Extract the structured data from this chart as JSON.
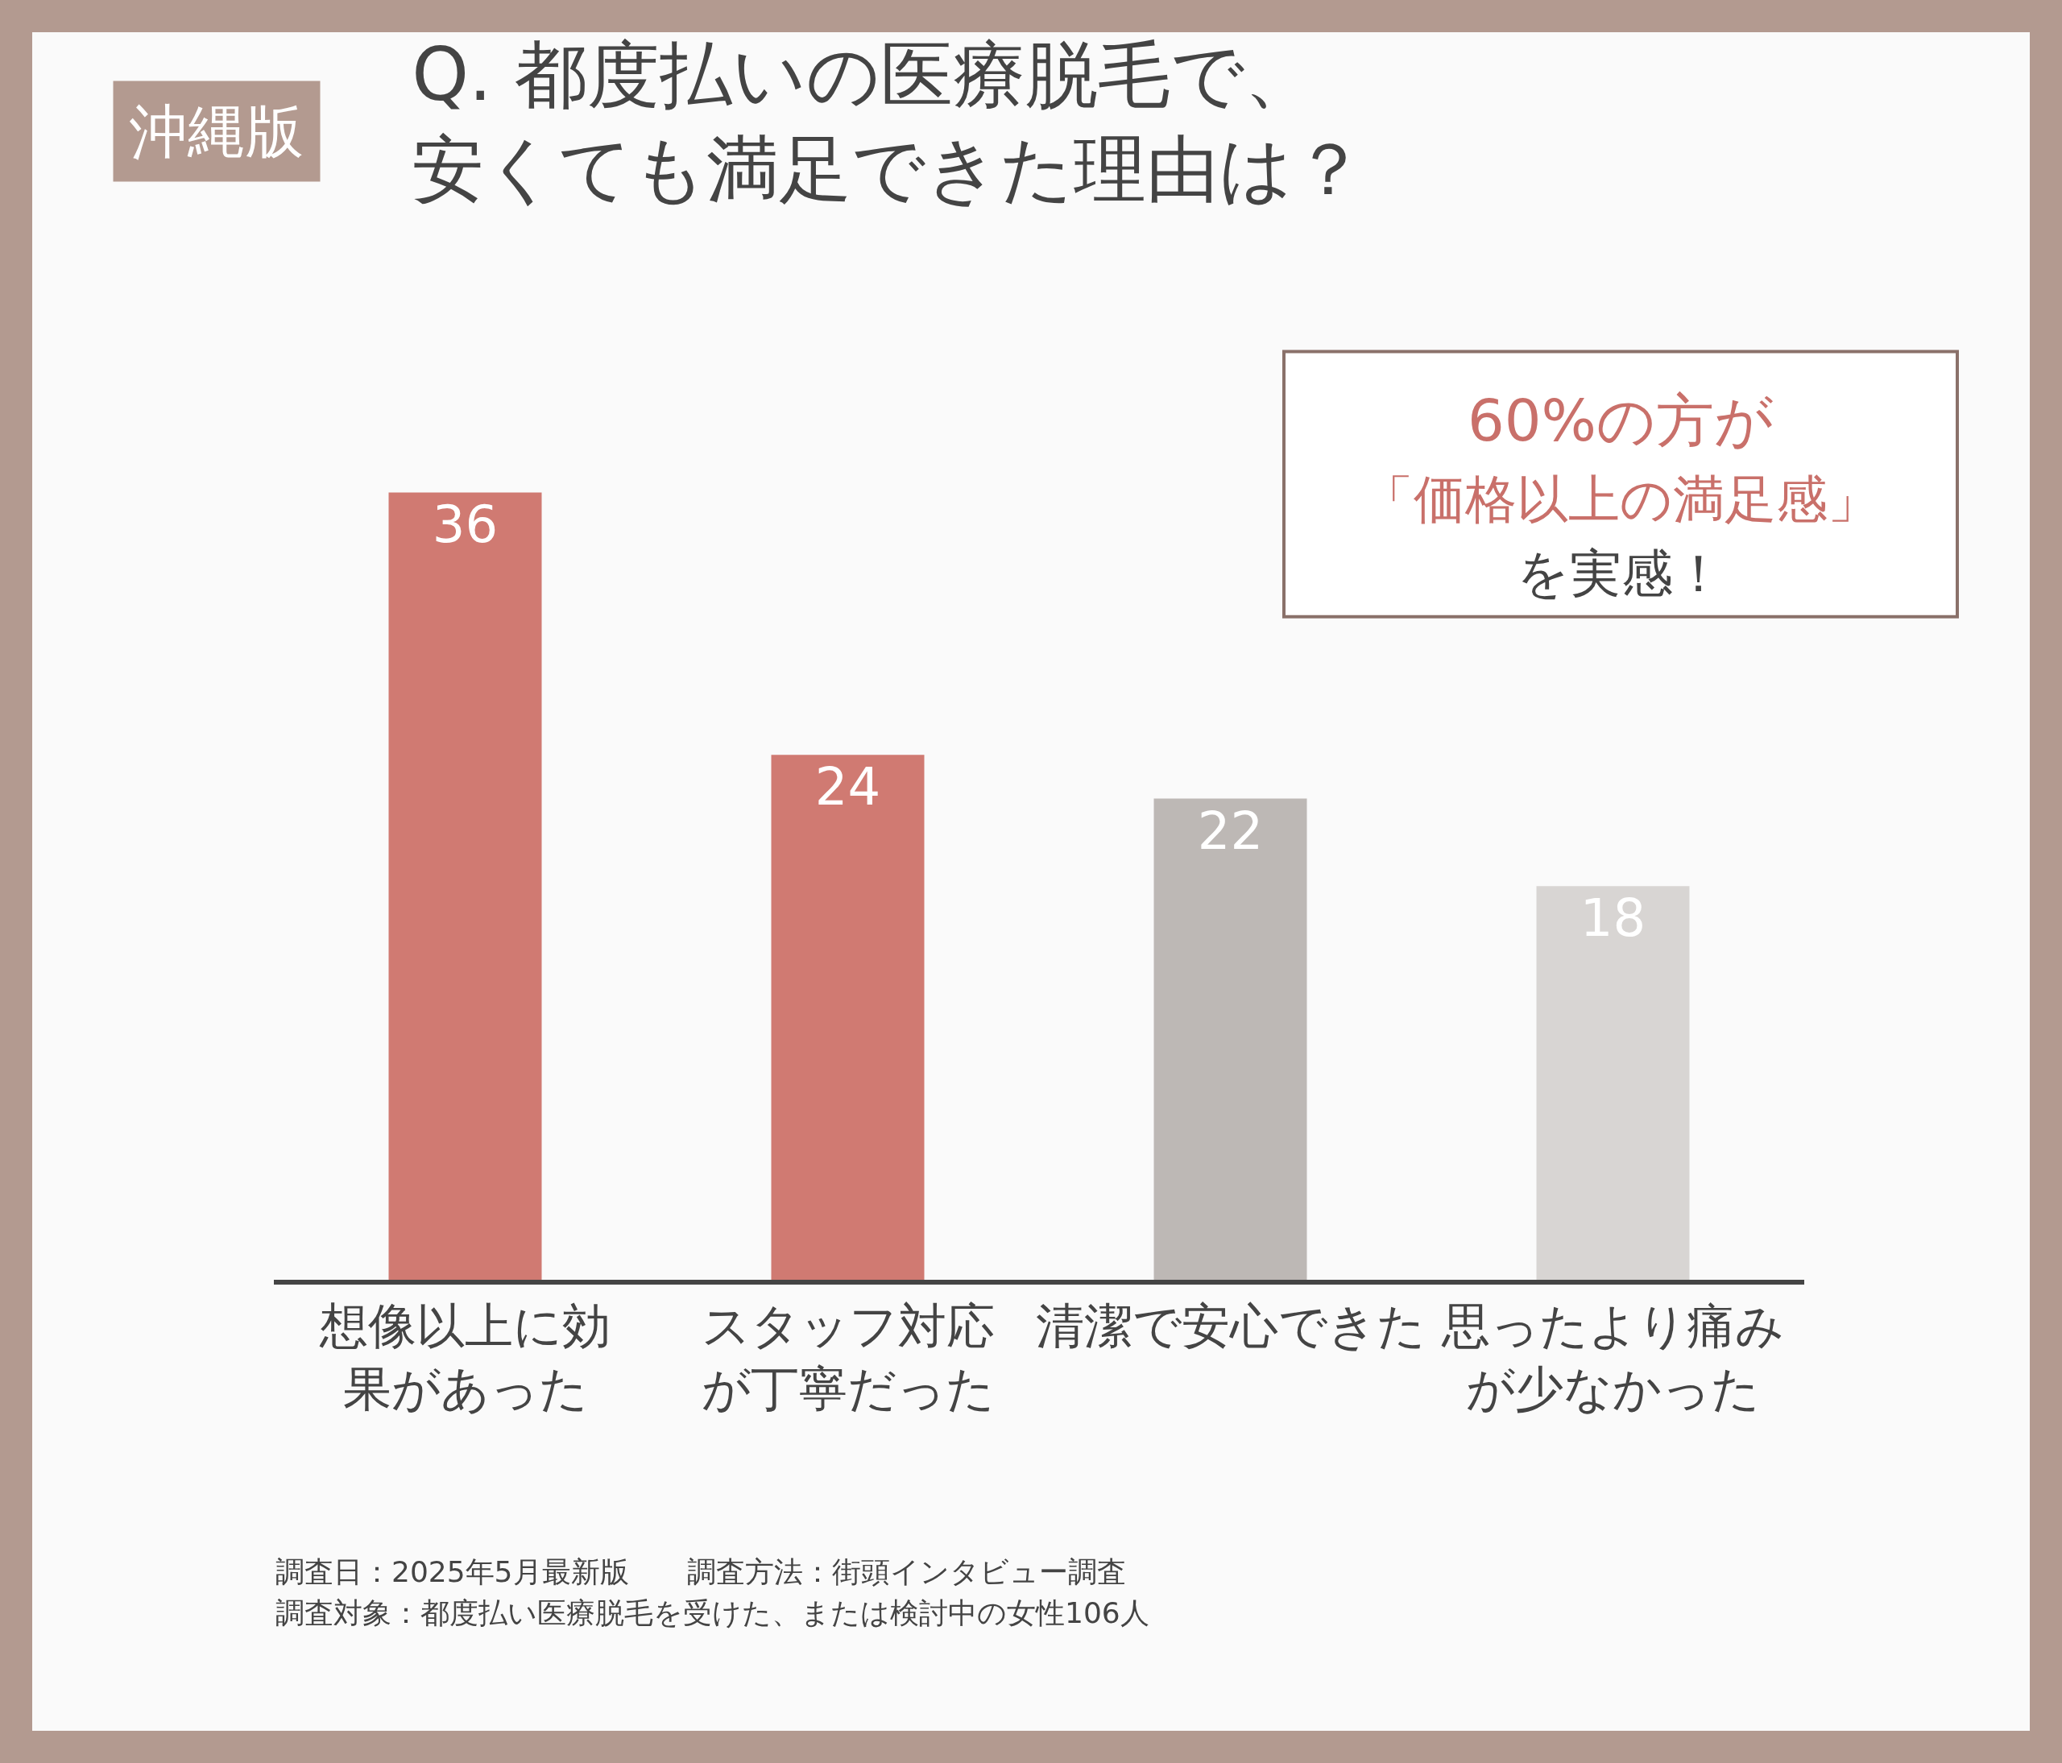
{
  "chart_data": {
    "type": "bar",
    "title": "Q. 都度払いの医療脱毛で、安くても満足できた理由は？",
    "categories": [
      "想像以上に効果があった",
      "スタッフ対応が丁寧だった",
      "清潔で安心できた",
      "思ったより痛みが少なかった"
    ],
    "values": [
      36,
      24,
      22,
      18
    ],
    "colors": [
      "#d07a72",
      "#d07a72",
      "#bdb8b5",
      "#d8d5d3"
    ],
    "data_labels": true,
    "grid": false,
    "legend": false,
    "annotations": [
      "沖縄版",
      "60%の方が",
      "「価格以上の満足感」",
      "を実感！",
      "調査日：2025年5月最新版　　調査方法：街頭インタビュー調査",
      "調査対象：都度払い医療脱毛を受けた、または検討中の女性106人"
    ]
  }
}
